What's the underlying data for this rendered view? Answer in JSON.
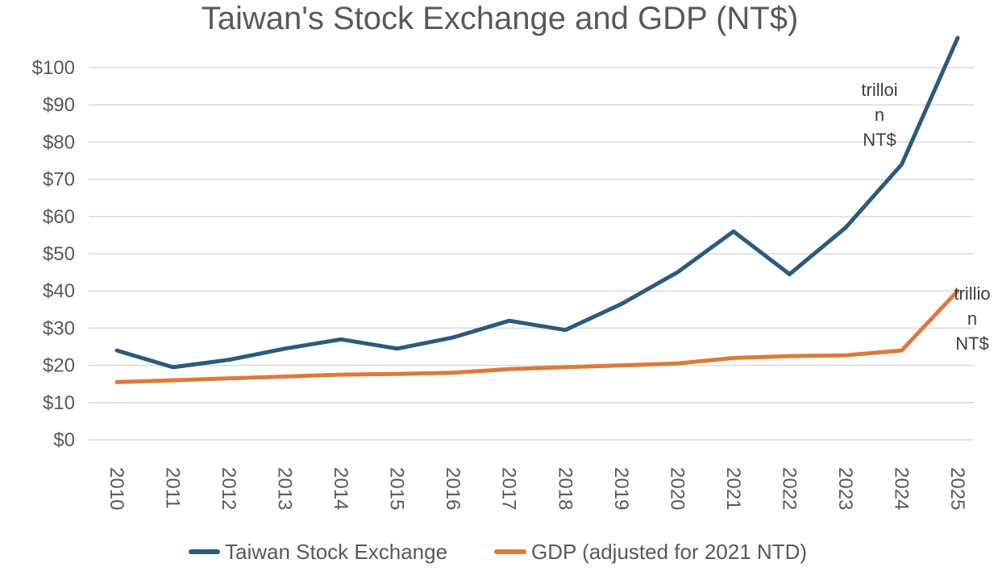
{
  "chart_data": {
    "type": "line",
    "title": "Taiwan's Stock Exchange and GDP (NT$)",
    "xlabel": "",
    "ylabel": "",
    "categories": [
      "2010",
      "2011",
      "2012",
      "2013",
      "2014",
      "2015",
      "2016",
      "2017",
      "2018",
      "2019",
      "2020",
      "2021",
      "2022",
      "2023",
      "2024",
      "2025"
    ],
    "ylim": [
      0,
      100
    ],
    "yticks": [
      0,
      10,
      20,
      30,
      40,
      50,
      60,
      70,
      80,
      90,
      100
    ],
    "ytick_labels": [
      "$0",
      "$10",
      "$20",
      "$30",
      "$40",
      "$50",
      "$60",
      "$70",
      "$80",
      "$90",
      "$100"
    ],
    "grid": true,
    "legend_position": "bottom",
    "series": [
      {
        "name": "Taiwan Stock Exchange",
        "color": "#2a5b7e",
        "values": [
          24,
          19.5,
          21.5,
          24.5,
          27,
          24.5,
          27.5,
          32,
          29.5,
          36.5,
          45,
          56,
          44.5,
          57,
          74,
          108
        ]
      },
      {
        "name": "GDP (adjusted for 2021 NTD)",
        "color": "#dc7a3a",
        "values": [
          15.5,
          16,
          16.5,
          17,
          17.5,
          17.7,
          18,
          19,
          19.5,
          20,
          20.5,
          22,
          22.5,
          22.7,
          24,
          40
        ]
      }
    ],
    "annotations": [
      {
        "lines": [
          "trilloi",
          "n",
          "NT$"
        ],
        "series": 0,
        "category": "2024"
      },
      {
        "lines": [
          "trillio",
          "n",
          "NT$"
        ],
        "series": 1,
        "category": "2025"
      }
    ]
  }
}
